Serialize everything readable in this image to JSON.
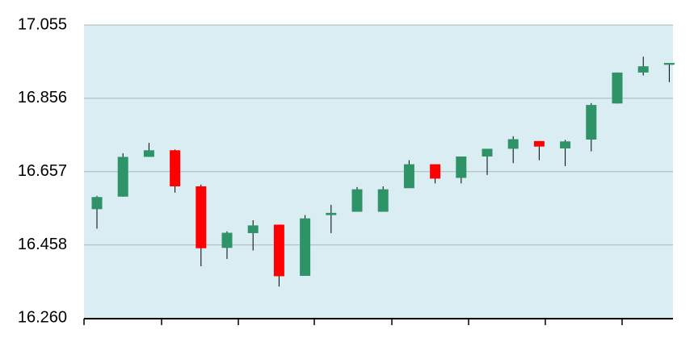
{
  "chart_data": {
    "type": "candlestick",
    "title": "",
    "xlabel": "",
    "ylabel": "",
    "ylim": [
      16.26,
      17.055
    ],
    "y_ticks": [
      "16.260",
      "16.458",
      "16.657",
      "16.856",
      "17.055"
    ],
    "grid": true,
    "legend": "none",
    "x_ticks_labeled": false,
    "colors": {
      "up": "#2e9467",
      "down": "#ff0000",
      "plot_background": "#daedf2",
      "grid": "#a9b8bc",
      "axis": "#000000"
    },
    "candles": [
      {
        "open": 16.555,
        "close": 16.588,
        "high": 16.591,
        "low": 16.502
      },
      {
        "open": 16.589,
        "close": 16.697,
        "high": 16.707,
        "low": 16.589
      },
      {
        "open": 16.697,
        "close": 16.715,
        "high": 16.735,
        "low": 16.697
      },
      {
        "open": 16.715,
        "close": 16.617,
        "high": 16.717,
        "low": 16.6
      },
      {
        "open": 16.617,
        "close": 16.449,
        "high": 16.622,
        "low": 16.4
      },
      {
        "open": 16.45,
        "close": 16.491,
        "high": 16.495,
        "low": 16.42
      },
      {
        "open": 16.49,
        "close": 16.511,
        "high": 16.525,
        "low": 16.443
      },
      {
        "open": 16.513,
        "close": 16.373,
        "high": 16.513,
        "low": 16.345
      },
      {
        "open": 16.374,
        "close": 16.53,
        "high": 16.539,
        "low": 16.374
      },
      {
        "open": 16.539,
        "close": 16.545,
        "high": 16.567,
        "low": 16.49
      },
      {
        "open": 16.548,
        "close": 16.609,
        "high": 16.615,
        "low": 16.548
      },
      {
        "open": 16.548,
        "close": 16.609,
        "high": 16.617,
        "low": 16.548
      },
      {
        "open": 16.612,
        "close": 16.677,
        "high": 16.688,
        "low": 16.612
      },
      {
        "open": 16.677,
        "close": 16.638,
        "high": 16.677,
        "low": 16.625
      },
      {
        "open": 16.64,
        "close": 16.698,
        "high": 16.698,
        "low": 16.625
      },
      {
        "open": 16.698,
        "close": 16.719,
        "high": 16.719,
        "low": 16.648
      },
      {
        "open": 16.719,
        "close": 16.745,
        "high": 16.753,
        "low": 16.68
      },
      {
        "open": 16.74,
        "close": 16.725,
        "high": 16.74,
        "low": 16.688
      },
      {
        "open": 16.72,
        "close": 16.739,
        "high": 16.743,
        "low": 16.672
      },
      {
        "open": 16.744,
        "close": 16.838,
        "high": 16.843,
        "low": 16.712
      },
      {
        "open": 16.842,
        "close": 16.926,
        "high": 16.926,
        "low": 16.842
      },
      {
        "open": 16.926,
        "close": 16.943,
        "high": 16.969,
        "low": 16.918
      },
      {
        "open": 16.947,
        "close": 16.952,
        "high": 16.952,
        "low": 16.9
      }
    ]
  }
}
